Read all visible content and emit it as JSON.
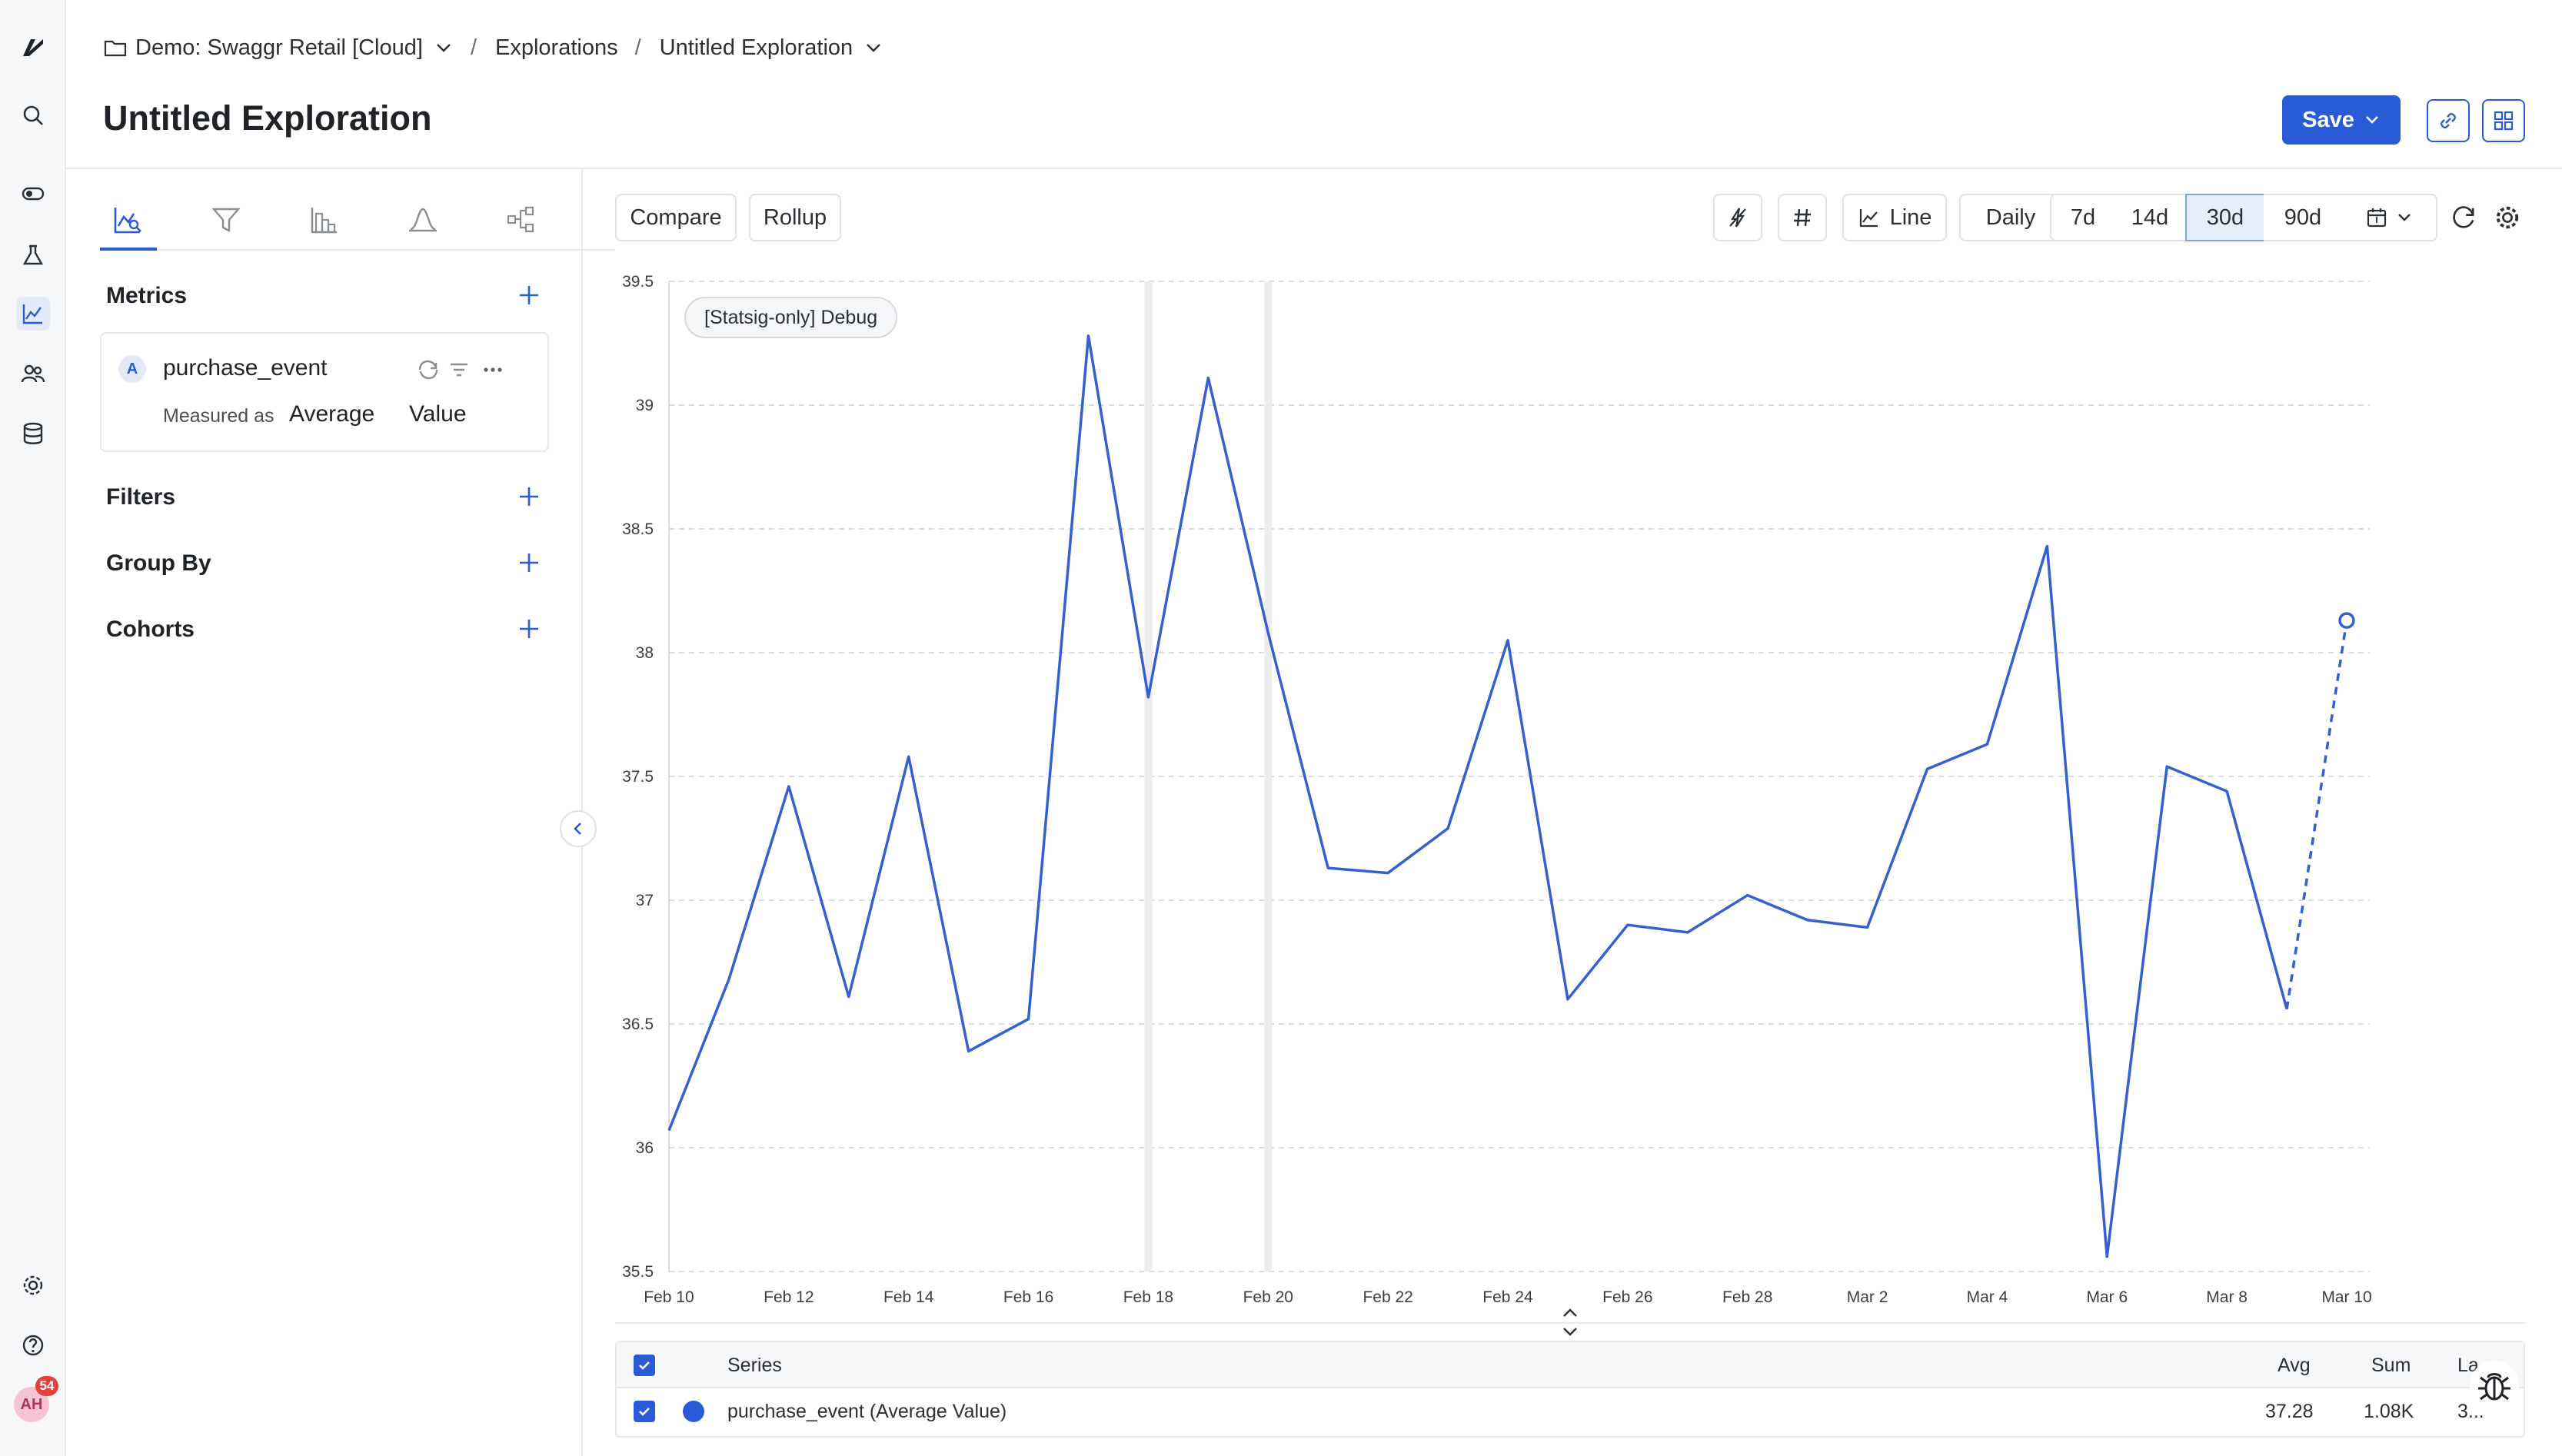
{
  "breadcrumb": {
    "project": "Demo: Swaggr Retail [Cloud]",
    "section": "Explorations",
    "current": "Untitled Exploration",
    "separator": "/"
  },
  "page": {
    "title": "Untitled Exploration"
  },
  "header": {
    "save_label": "Save"
  },
  "user": {
    "initials": "AH",
    "notifications": "54"
  },
  "panel": {
    "metrics_label": "Metrics",
    "filters_label": "Filters",
    "group_by_label": "Group By",
    "cohorts_label": "Cohorts",
    "metric": {
      "badge": "A",
      "name": "purchase_event",
      "measured_label": "Measured as",
      "aggregation": "Average",
      "value_type": "Value"
    }
  },
  "toolbar": {
    "compare_label": "Compare",
    "rollup_label": "Rollup",
    "line_label": "Line",
    "granularity_label": "Daily",
    "ranges": [
      "7d",
      "14d",
      "30d",
      "90d"
    ],
    "selected_range": "30d"
  },
  "debug_label": "[Statsig-only] Debug",
  "chart_data": {
    "type": "line",
    "ylim": [
      35.5,
      39.5
    ],
    "y_ticks": [
      "39.5",
      "39",
      "38.5",
      "38",
      "37.5",
      "37",
      "36.5",
      "36",
      "35.5"
    ],
    "x_tick_labels": [
      "Feb 10",
      "Feb 12",
      "Feb 14",
      "Feb 16",
      "Feb 18",
      "Feb 20",
      "Feb 22",
      "Feb 24",
      "Feb 26",
      "Feb 28",
      "Mar 2",
      "Mar 4",
      "Mar 6",
      "Mar 8",
      "Mar 10"
    ],
    "x": [
      "Feb 10",
      "Feb 11",
      "Feb 12",
      "Feb 13",
      "Feb 14",
      "Feb 15",
      "Feb 16",
      "Feb 17",
      "Feb 18",
      "Feb 19",
      "Feb 20",
      "Feb 21",
      "Feb 22",
      "Feb 23",
      "Feb 24",
      "Feb 25",
      "Feb 26",
      "Feb 27",
      "Feb 28",
      "Mar 1",
      "Mar 2",
      "Mar 3",
      "Mar 4",
      "Mar 5",
      "Mar 6",
      "Mar 7",
      "Mar 8",
      "Mar 9",
      "Mar 10"
    ],
    "series": [
      {
        "name": "purchase_event (Average Value)",
        "color": "#3560cf",
        "values": [
          36.07,
          36.68,
          37.46,
          36.61,
          37.58,
          36.39,
          36.52,
          39.28,
          37.82,
          39.11,
          38.08,
          37.13,
          37.11,
          37.29,
          38.05,
          36.6,
          36.9,
          36.87,
          37.02,
          36.92,
          36.89,
          37.53,
          37.63,
          38.43,
          35.56,
          37.54,
          37.44,
          36.56,
          38.13
        ],
        "partial_last_point": true
      }
    ],
    "annotation_dates": [
      "Feb 18",
      "Feb 20"
    ],
    "grid": true
  },
  "table": {
    "headers": {
      "series": "Series",
      "avg": "Avg",
      "sum": "Sum",
      "last": "La..."
    },
    "rows": [
      {
        "series": "purchase_event (Average Value)",
        "avg": "37.28",
        "sum": "1.08K",
        "last": "3..."
      }
    ]
  }
}
